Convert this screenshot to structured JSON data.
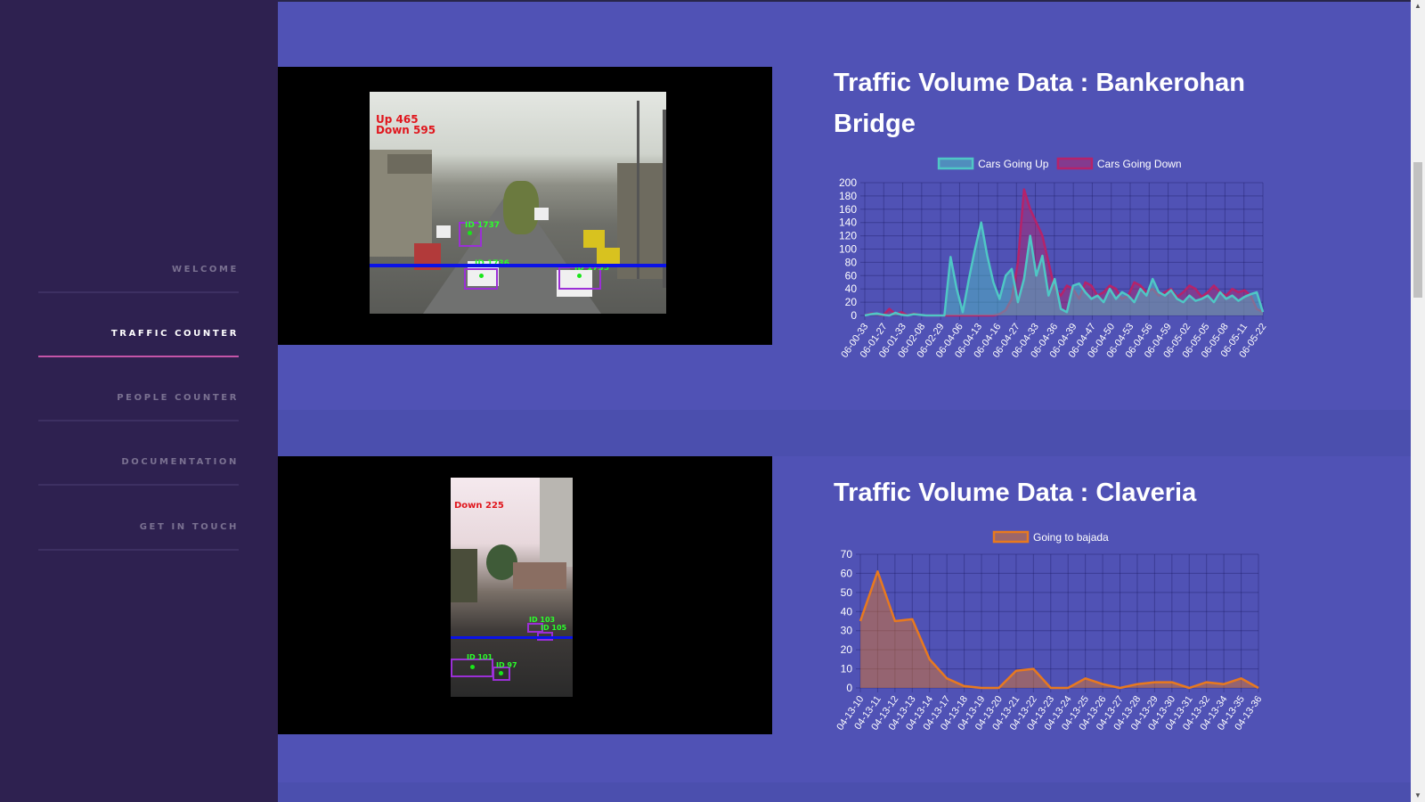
{
  "nav": {
    "items": [
      {
        "label": "WELCOME",
        "active": false
      },
      {
        "label": "TRAFFIC COUNTER",
        "active": true
      },
      {
        "label": "PEOPLE COUNTER",
        "active": false
      },
      {
        "label": "DOCUMENTATION",
        "active": false
      },
      {
        "label": "GET IN TOUCH",
        "active": false
      }
    ]
  },
  "sections": [
    {
      "title": "Traffic Volume Data : Bankerohan Bridge",
      "video": {
        "overlay_up": "Up 465",
        "overlay_down": "Down 595",
        "ids": [
          "ID 1737",
          "ID 1736",
          "ID 1735"
        ]
      }
    },
    {
      "title": "Traffic Volume Data : Claveria",
      "video": {
        "overlay_down": "Down 225",
        "ids": [
          "ID 103",
          "ID 105",
          "ID 101",
          "ID 97"
        ]
      }
    }
  ],
  "colors": {
    "sidebar": "#2e2150",
    "main_bg": "#5052b5",
    "accent": "#c455a8",
    "series_up": "#4fc7c5",
    "series_down": "#b5236a",
    "series_bajada": "#e8791f"
  },
  "chart_data": [
    {
      "type": "area",
      "legend": [
        "Cars Going Up",
        "Cars Going Down"
      ],
      "legend_placement": "top",
      "grid": true,
      "ylim": [
        0,
        200
      ],
      "yticks": [
        0,
        20,
        40,
        60,
        80,
        100,
        120,
        140,
        160,
        180,
        200
      ],
      "x_tick_labels": [
        "06-00-33",
        "06-01-27",
        "06-01-33",
        "06-02-08",
        "06-02-29",
        "06-04-06",
        "06-04-13",
        "06-04-16",
        "06-04-27",
        "06-04-33",
        "06-04-36",
        "06-04-39",
        "06-04-47",
        "06-04-50",
        "06-04-53",
        "06-04-56",
        "06-04-59",
        "06-05-02",
        "06-05-05",
        "06-05-08",
        "06-05-11",
        "06-05-22"
      ],
      "series": [
        {
          "name": "Cars Going Up",
          "color": "#4fc7c5",
          "values": [
            0,
            2,
            3,
            1,
            0,
            4,
            1,
            0,
            2,
            1,
            0,
            0,
            0,
            0,
            88,
            40,
            5,
            55,
            100,
            140,
            90,
            50,
            25,
            60,
            70,
            20,
            55,
            120,
            60,
            90,
            30,
            55,
            10,
            5,
            45,
            48,
            35,
            25,
            30,
            20,
            40,
            25,
            35,
            30,
            20,
            40,
            30,
            55,
            35,
            30,
            38,
            25,
            20,
            30,
            22,
            25,
            30,
            20,
            35,
            25,
            30,
            22,
            28,
            32,
            35,
            5
          ]
        },
        {
          "name": "Cars Going Down",
          "color": "#b5236a",
          "values": [
            0,
            3,
            2,
            0,
            10,
            2,
            5,
            0,
            3,
            1,
            0,
            0,
            0,
            0,
            0,
            0,
            0,
            0,
            0,
            0,
            0,
            0,
            2,
            8,
            25,
            80,
            190,
            160,
            140,
            120,
            80,
            40,
            30,
            45,
            40,
            25,
            50,
            45,
            30,
            35,
            45,
            40,
            25,
            30,
            50,
            45,
            35,
            40,
            30,
            35,
            40,
            28,
            35,
            45,
            40,
            28,
            35,
            45,
            35,
            30,
            40,
            35,
            38,
            30,
            10,
            5
          ]
        }
      ]
    },
    {
      "type": "area",
      "legend": [
        "Going to bajada"
      ],
      "legend_placement": "top",
      "grid": true,
      "ylim": [
        0,
        70
      ],
      "yticks": [
        0,
        10,
        20,
        30,
        40,
        50,
        60,
        70
      ],
      "x_tick_labels": [
        "04-13-10",
        "04-13-11",
        "04-13-12",
        "04-13-13",
        "04-13-14",
        "04-13-17",
        "04-13-18",
        "04-13-19",
        "04-13-20",
        "04-13-21",
        "04-13-22",
        "04-13-23",
        "04-13-24",
        "04-13-25",
        "04-13-26",
        "04-13-27",
        "04-13-28",
        "04-13-29",
        "04-13-30",
        "04-13-31",
        "04-13-32",
        "04-13-34",
        "04-13-35",
        "04-13-36"
      ],
      "series": [
        {
          "name": "Going to bajada",
          "color": "#e8791f",
          "values": [
            35,
            61,
            35,
            36,
            15,
            5,
            1,
            0,
            0,
            9,
            10,
            0,
            0,
            5,
            2,
            0,
            2,
            3,
            3,
            0,
            3,
            2,
            5,
            0
          ]
        }
      ]
    }
  ]
}
